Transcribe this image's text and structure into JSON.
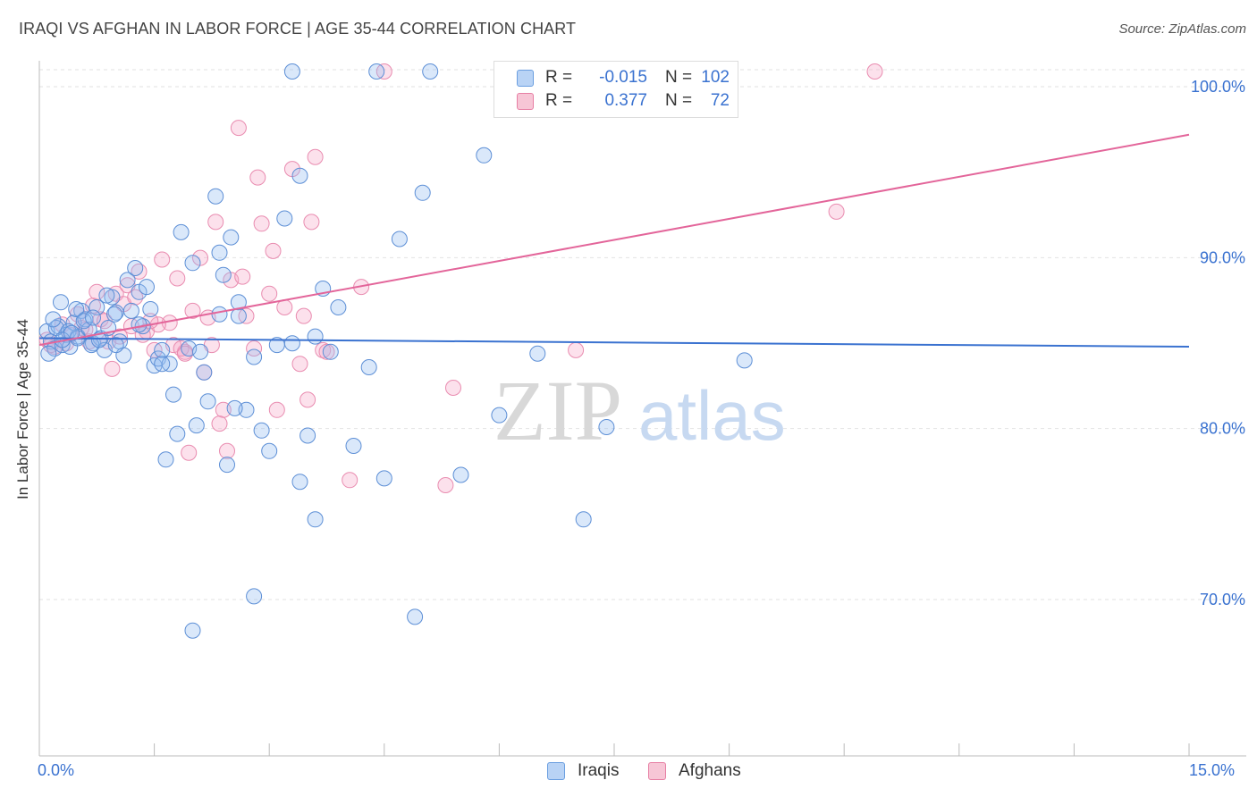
{
  "title": "IRAQI VS AFGHAN IN LABOR FORCE | AGE 35-44 CORRELATION CHART",
  "source": "Source: ZipAtlas.com",
  "watermark": {
    "zip": "ZIP",
    "atlas": "atlas"
  },
  "legend": {
    "r_label": "R =",
    "n_label": "N =",
    "rows": [
      {
        "name": "Iraqis",
        "r": "-0.015",
        "n": "102",
        "color": "#6a9ee0",
        "fill": "#b9d3f5"
      },
      {
        "name": "Afghans",
        "r": "0.377",
        "n": "72",
        "color": "#e77fa4",
        "fill": "#f7c6d6"
      }
    ]
  },
  "chart_data": {
    "type": "scatter",
    "title": "IRAQI VS AFGHAN IN LABOR FORCE | AGE 35-44 CORRELATION CHART",
    "xlabel": "",
    "ylabel": "In Labor Force | Age 35-44",
    "xlim": [
      0.0,
      15.0
    ],
    "ylim": [
      60.0,
      101.5
    ],
    "x_tick_labels": [
      "0.0%",
      "15.0%"
    ],
    "y_ticks": [
      70,
      80,
      90,
      100
    ],
    "y_tick_labels": [
      "70.0%",
      "80.0%",
      "90.0%",
      "100.0%"
    ],
    "series": [
      {
        "name": "Iraqis",
        "color": "#3a72d0",
        "trend": {
          "x": [
            0.0,
            15.0
          ],
          "y": [
            84.4,
            83.9
          ]
        },
        "points": [
          [
            0.1,
            84.8
          ],
          [
            0.15,
            84.2
          ],
          [
            0.2,
            83.8
          ],
          [
            0.25,
            85.1
          ],
          [
            0.3,
            84.0
          ],
          [
            0.35,
            84.6
          ],
          [
            0.4,
            83.9
          ],
          [
            0.45,
            85.3
          ],
          [
            0.5,
            84.5
          ],
          [
            0.55,
            86.0
          ],
          [
            0.6,
            85.5
          ],
          [
            0.65,
            84.9
          ],
          [
            0.7,
            84.1
          ],
          [
            0.75,
            86.2
          ],
          [
            0.8,
            84.4
          ],
          [
            0.85,
            83.7
          ],
          [
            0.9,
            85.0
          ],
          [
            0.95,
            86.8
          ],
          [
            1.0,
            85.9
          ],
          [
            1.05,
            84.2
          ],
          [
            0.12,
            83.5
          ],
          [
            0.22,
            85.0
          ],
          [
            0.28,
            86.5
          ],
          [
            0.38,
            84.8
          ],
          [
            0.48,
            86.1
          ],
          [
            0.58,
            85.4
          ],
          [
            0.68,
            84.0
          ],
          [
            0.78,
            84.3
          ],
          [
            0.88,
            86.9
          ],
          [
            0.98,
            85.8
          ],
          [
            1.1,
            83.4
          ],
          [
            1.15,
            87.8
          ],
          [
            1.2,
            86.0
          ],
          [
            1.25,
            88.5
          ],
          [
            1.3,
            87.1
          ],
          [
            1.35,
            85.1
          ],
          [
            1.4,
            87.4
          ],
          [
            1.5,
            82.8
          ],
          [
            1.55,
            83.2
          ],
          [
            1.6,
            83.7
          ],
          [
            1.7,
            82.9
          ],
          [
            1.75,
            81.1
          ],
          [
            1.85,
            90.6
          ],
          [
            1.95,
            83.8
          ],
          [
            2.0,
            88.8
          ],
          [
            2.1,
            83.6
          ],
          [
            2.15,
            82.4
          ],
          [
            2.2,
            80.7
          ],
          [
            2.3,
            92.7
          ],
          [
            2.35,
            89.4
          ],
          [
            2.4,
            88.1
          ],
          [
            2.5,
            90.3
          ],
          [
            2.6,
            85.7
          ],
          [
            2.7,
            80.2
          ],
          [
            2.8,
            83.3
          ],
          [
            2.9,
            79.0
          ],
          [
            3.0,
            77.8
          ],
          [
            3.1,
            84.0
          ],
          [
            3.2,
            91.4
          ],
          [
            3.3,
            84.1
          ],
          [
            3.4,
            93.9
          ],
          [
            3.5,
            78.7
          ],
          [
            3.6,
            84.5
          ],
          [
            3.7,
            87.3
          ],
          [
            3.8,
            83.6
          ],
          [
            3.9,
            86.2
          ],
          [
            4.1,
            78.1
          ],
          [
            4.3,
            82.7
          ],
          [
            4.5,
            76.2
          ],
          [
            4.7,
            90.2
          ],
          [
            5.0,
            92.9
          ],
          [
            5.1,
            100.0
          ],
          [
            5.5,
            76.4
          ],
          [
            5.8,
            95.1
          ],
          [
            6.0,
            79.9
          ],
          [
            6.5,
            83.5
          ],
          [
            7.1,
            73.8
          ],
          [
            7.4,
            79.2
          ],
          [
            3.3,
            100.0
          ],
          [
            4.4,
            100.0
          ],
          [
            1.65,
            77.3
          ],
          [
            1.8,
            78.8
          ],
          [
            2.05,
            79.3
          ],
          [
            2.45,
            77.0
          ],
          [
            2.55,
            80.3
          ],
          [
            2.8,
            69.3
          ],
          [
            2.0,
            67.3
          ],
          [
            3.6,
            73.8
          ],
          [
            4.9,
            68.1
          ],
          [
            3.4,
            76.0
          ],
          [
            2.6,
            86.5
          ],
          [
            1.3,
            85.2
          ],
          [
            1.0,
            84.0
          ],
          [
            0.5,
            84.4
          ],
          [
            0.7,
            85.6
          ],
          [
            1.45,
            86.1
          ],
          [
            2.35,
            85.8
          ],
          [
            1.6,
            82.9
          ],
          [
            9.2,
            83.1
          ],
          [
            0.3,
            84.3
          ],
          [
            0.18,
            85.5
          ],
          [
            0.42,
            84.7
          ]
        ]
      },
      {
        "name": "Afghans",
        "color": "#e3659a",
        "trend": {
          "x": [
            0.0,
            15.0
          ],
          "y": [
            84.0,
            96.3
          ]
        },
        "points": [
          [
            0.1,
            84.3
          ],
          [
            0.2,
            83.9
          ],
          [
            0.3,
            85.2
          ],
          [
            0.4,
            84.6
          ],
          [
            0.5,
            85.8
          ],
          [
            0.6,
            84.9
          ],
          [
            0.7,
            86.3
          ],
          [
            0.8,
            85.5
          ],
          [
            0.9,
            84.2
          ],
          [
            1.0,
            87.0
          ],
          [
            1.1,
            86.4
          ],
          [
            1.2,
            85.1
          ],
          [
            1.3,
            88.3
          ],
          [
            1.4,
            84.8
          ],
          [
            1.5,
            83.7
          ],
          [
            1.6,
            89.0
          ],
          [
            1.7,
            85.3
          ],
          [
            1.8,
            87.9
          ],
          [
            1.9,
            83.6
          ],
          [
            2.0,
            86.0
          ],
          [
            2.1,
            89.1
          ],
          [
            2.2,
            85.6
          ],
          [
            2.3,
            91.2
          ],
          [
            2.4,
            80.2
          ],
          [
            2.5,
            87.8
          ],
          [
            2.6,
            96.7
          ],
          [
            2.7,
            85.7
          ],
          [
            2.8,
            83.8
          ],
          [
            2.9,
            91.1
          ],
          [
            3.0,
            87.0
          ],
          [
            3.1,
            80.2
          ],
          [
            3.2,
            86.2
          ],
          [
            3.3,
            94.3
          ],
          [
            3.4,
            82.9
          ],
          [
            3.5,
            80.8
          ],
          [
            3.6,
            95.0
          ],
          [
            3.7,
            83.7
          ],
          [
            4.2,
            87.4
          ],
          [
            4.5,
            100.0
          ],
          [
            5.4,
            81.5
          ],
          [
            0.15,
            84.0
          ],
          [
            0.35,
            84.1
          ],
          [
            0.55,
            85.0
          ],
          [
            0.75,
            87.1
          ],
          [
            0.95,
            82.6
          ],
          [
            1.15,
            87.5
          ],
          [
            1.35,
            84.6
          ],
          [
            1.55,
            85.2
          ],
          [
            1.75,
            84.0
          ],
          [
            1.95,
            77.7
          ],
          [
            2.15,
            82.4
          ],
          [
            2.35,
            79.4
          ],
          [
            2.45,
            77.8
          ],
          [
            2.65,
            88.0
          ],
          [
            2.85,
            93.8
          ],
          [
            3.05,
            89.5
          ],
          [
            3.55,
            91.2
          ],
          [
            3.75,
            83.6
          ],
          [
            4.05,
            76.1
          ],
          [
            5.3,
            75.8
          ],
          [
            7.0,
            83.7
          ],
          [
            10.4,
            91.8
          ],
          [
            10.9,
            100.0
          ],
          [
            1.25,
            86.8
          ],
          [
            1.45,
            85.4
          ],
          [
            0.65,
            84.2
          ],
          [
            0.85,
            85.4
          ],
          [
            1.05,
            84.5
          ],
          [
            1.85,
            83.8
          ],
          [
            2.25,
            84.0
          ],
          [
            3.45,
            85.7
          ],
          [
            1.9,
            83.5
          ]
        ]
      }
    ]
  }
}
